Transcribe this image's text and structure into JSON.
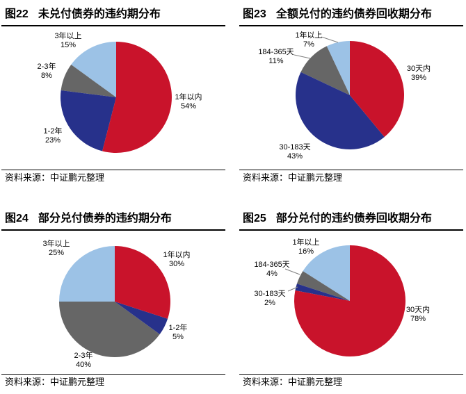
{
  "source_note": "资料来源：中证鹏元整理",
  "chart_data": [
    {
      "type": "pie",
      "fig_no": "图22",
      "title": "未兑付债券的违约期分布",
      "source": "资料来源：中证鹏元整理",
      "start_angle_deg": 0,
      "direction": "clockwise",
      "slices": [
        {
          "label": "1年以内",
          "value_pct": 54,
          "pct_text": "54%",
          "color": "#C9132B"
        },
        {
          "label": "1-2年",
          "value_pct": 23,
          "pct_text": "23%",
          "color": "#27318B"
        },
        {
          "label": "2-3年",
          "value_pct": 8,
          "pct_text": "8%",
          "color": "#666666"
        },
        {
          "label": "3年以上",
          "value_pct": 15,
          "pct_text": "15%",
          "color": "#9CC2E6"
        }
      ]
    },
    {
      "type": "pie",
      "fig_no": "图23",
      "title": "全额兑付的违约债券回收期分布",
      "source": "资料来源：中证鹏元整理",
      "start_angle_deg": 0,
      "direction": "clockwise",
      "slices": [
        {
          "label": "30天内",
          "value_pct": 39,
          "pct_text": "39%",
          "color": "#C9132B"
        },
        {
          "label": "30-183天",
          "value_pct": 43,
          "pct_text": "43%",
          "color": "#27318B"
        },
        {
          "label": "184-365天",
          "value_pct": 11,
          "pct_text": "11%",
          "color": "#666666"
        },
        {
          "label": "1年以上",
          "value_pct": 7,
          "pct_text": "7%",
          "color": "#9CC2E6"
        }
      ]
    },
    {
      "type": "pie",
      "fig_no": "图24",
      "title": "部分兑付债券的违约期分布",
      "source": "资料来源：中证鹏元整理",
      "start_angle_deg": 0,
      "direction": "clockwise",
      "slices": [
        {
          "label": "1年以内",
          "value_pct": 30,
          "pct_text": "30%",
          "color": "#C9132B"
        },
        {
          "label": "1-2年",
          "value_pct": 5,
          "pct_text": "5%",
          "color": "#27318B"
        },
        {
          "label": "2-3年",
          "value_pct": 40,
          "pct_text": "40%",
          "color": "#666666"
        },
        {
          "label": "3年以上",
          "value_pct": 25,
          "pct_text": "25%",
          "color": "#9CC2E6"
        }
      ]
    },
    {
      "type": "pie",
      "fig_no": "图25",
      "title": "部分兑付的违约债券回收期分布",
      "source": "资料来源：中证鹏元整理",
      "start_angle_deg": 0,
      "direction": "clockwise",
      "slices": [
        {
          "label": "30天内",
          "value_pct": 78,
          "pct_text": "78%",
          "color": "#C9132B"
        },
        {
          "label": "30-183天",
          "value_pct": 2,
          "pct_text": "2%",
          "color": "#27318B"
        },
        {
          "label": "184-365天",
          "value_pct": 4,
          "pct_text": "4%",
          "color": "#666666"
        },
        {
          "label": "1年以上",
          "value_pct": 16,
          "pct_text": "16%",
          "color": "#9CC2E6"
        }
      ]
    }
  ]
}
